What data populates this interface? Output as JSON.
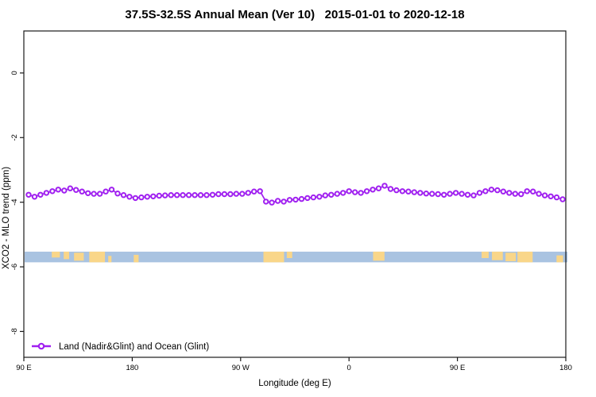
{
  "title": "37.5S-32.5S Annual Mean (Ver 10)   2015-01-01 to 2020-12-18",
  "legend": {
    "label": "Land (Nadir&Glint) and Ocean (Glint)"
  },
  "colors": {
    "series": "#A020F0",
    "marker_fill": "#FFFFFF",
    "ocean": "#A9C3E1",
    "land": "#F9D689",
    "axis": "#1A1A1A"
  },
  "chart_data": {
    "type": "line",
    "title": "37.5S-32.5S Annual Mean (Ver 10)   2015-01-01 to 2020-12-18",
    "xlabel": "Longitude (deg E)",
    "ylabel": "XCO2 - MLO trend (ppm)",
    "x_tick_labels": [
      "90 E",
      "180",
      "90 W",
      "0",
      "90 E",
      "180"
    ],
    "x_axis_note": "longitude wraps eastward from 90E through 180, 90W, 0, 90E to 180 (450 deg total), one point every ~5 deg",
    "y_ticks": [
      0,
      -2,
      -4,
      -6,
      -8
    ],
    "ylim": [
      -8.8,
      1.3
    ],
    "grid": false,
    "legend_position": "bottom-left",
    "series": [
      {
        "name": "Land (Nadir&Glint) and Ocean (Glint)",
        "marker": "open-circle",
        "lon_start_deg_e": 94,
        "lon_step_deg": 5,
        "values": [
          -3.77,
          -3.83,
          -3.77,
          -3.71,
          -3.66,
          -3.61,
          -3.64,
          -3.57,
          -3.62,
          -3.67,
          -3.72,
          -3.74,
          -3.74,
          -3.67,
          -3.61,
          -3.73,
          -3.78,
          -3.83,
          -3.87,
          -3.85,
          -3.83,
          -3.82,
          -3.8,
          -3.79,
          -3.78,
          -3.78,
          -3.78,
          -3.78,
          -3.78,
          -3.78,
          -3.78,
          -3.77,
          -3.75,
          -3.75,
          -3.75,
          -3.74,
          -3.74,
          -3.71,
          -3.67,
          -3.66,
          -3.98,
          -4.01,
          -3.96,
          -3.98,
          -3.93,
          -3.92,
          -3.9,
          -3.87,
          -3.85,
          -3.83,
          -3.79,
          -3.77,
          -3.74,
          -3.71,
          -3.66,
          -3.69,
          -3.71,
          -3.66,
          -3.61,
          -3.57,
          -3.49,
          -3.59,
          -3.63,
          -3.66,
          -3.67,
          -3.69,
          -3.71,
          -3.73,
          -3.74,
          -3.75,
          -3.77,
          -3.74,
          -3.71,
          -3.74,
          -3.77,
          -3.79,
          -3.71,
          -3.66,
          -3.61,
          -3.63,
          -3.67,
          -3.71,
          -3.74,
          -3.75,
          -3.66,
          -3.67,
          -3.74,
          -3.79,
          -3.82,
          -3.85,
          -3.91
        ]
      }
    ],
    "map_strip": {
      "description": "land/ocean strip for latitude band 37.5S-32.5S drawn across plot",
      "y_value_top": -5.53,
      "y_value_bottom": -5.86,
      "land_patches": [
        [
          0.05,
          0.065,
          0.0,
          0.55
        ],
        [
          0.072,
          0.082,
          0.0,
          0.7
        ],
        [
          0.091,
          0.109,
          0.1,
          0.85
        ],
        [
          0.119,
          0.148,
          0.0,
          1.0
        ],
        [
          0.154,
          0.16,
          0.4,
          1.0
        ],
        [
          0.201,
          0.21,
          0.3,
          1.0
        ],
        [
          0.44,
          0.478,
          0.0,
          1.0
        ],
        [
          0.483,
          0.493,
          0.0,
          0.6
        ],
        [
          0.642,
          0.663,
          0.0,
          0.85
        ],
        [
          0.842,
          0.855,
          0.0,
          0.6
        ],
        [
          0.861,
          0.881,
          0.0,
          0.8
        ],
        [
          0.886,
          0.905,
          0.1,
          0.9
        ],
        [
          0.908,
          0.936,
          0.0,
          1.0
        ],
        [
          0.98,
          0.992,
          0.35,
          1.0
        ]
      ]
    }
  }
}
